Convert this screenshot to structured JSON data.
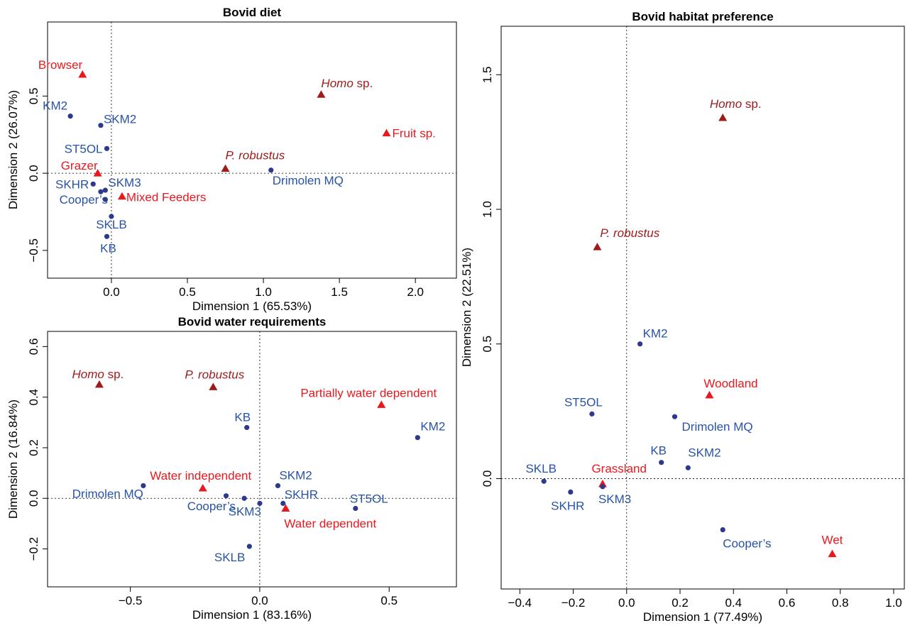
{
  "colors": {
    "site": "#2653a6",
    "site_marker": "#2d3a8c",
    "category": "#e8191e",
    "hominin": "#9e1b1b"
  },
  "chart_data": [
    {
      "type": "scatter",
      "title": "Bovid diet",
      "xlabel": "Dimension 1 (65.53%)",
      "ylabel": "Dimension 2 (26.07%)",
      "xlim": [
        -0.42,
        2.27
      ],
      "ylim": [
        -0.68,
        0.98
      ],
      "xticks": [
        0.0,
        0.5,
        1.0,
        1.5,
        2.0
      ],
      "xtick_labels": [
        "0.0",
        "0.5",
        "1.0",
        "1.5",
        "2.0"
      ],
      "yticks": [
        -0.5,
        0.0,
        0.5
      ],
      "ytick_labels": [
        "−0.5",
        "0.0",
        "0.5"
      ],
      "grid": false,
      "points": [
        {
          "label": "KM2",
          "x": -0.27,
          "y": 0.37,
          "group": "site",
          "anchor": "end",
          "dx": -4,
          "dy": -9
        },
        {
          "label": "SKM2",
          "x": -0.07,
          "y": 0.31,
          "group": "site",
          "anchor": "start",
          "dx": 4,
          "dy": -3
        },
        {
          "label": "ST5OL",
          "x": -0.03,
          "y": 0.16,
          "group": "site",
          "anchor": "end",
          "dx": -6,
          "dy": 6
        },
        {
          "label": "Grazer",
          "x": -0.09,
          "y": 0.0,
          "group": "category",
          "anchor": "end",
          "dx": 0,
          "dy": -5
        },
        {
          "label": "SKHR",
          "x": -0.12,
          "y": -0.07,
          "group": "site",
          "anchor": "end",
          "dx": -6,
          "dy": 6
        },
        {
          "label": "SKM3",
          "x": -0.04,
          "y": -0.11,
          "group": "site",
          "anchor": "start",
          "dx": 4,
          "dy": -5
        },
        {
          "label": "Cooper's",
          "x": -0.07,
          "y": -0.12,
          "group": "site",
          "anchor": "end",
          "dx": 10,
          "dy": 17
        },
        {
          "label": "",
          "x": -0.04,
          "y": -0.17,
          "group": "site",
          "anchor": "start",
          "dx": 0,
          "dy": 0
        },
        {
          "label": "Mixed Feeders",
          "x": 0.07,
          "y": -0.15,
          "group": "category",
          "anchor": "start",
          "dx": 6,
          "dy": 7
        },
        {
          "label": "SKLB",
          "x": 0.0,
          "y": -0.28,
          "group": "site",
          "anchor": "middle",
          "dx": 0,
          "dy": 17
        },
        {
          "label": "KB",
          "x": -0.03,
          "y": -0.41,
          "group": "site",
          "anchor": "middle",
          "dx": 2,
          "dy": 22
        },
        {
          "label": "Browser",
          "x": -0.19,
          "y": 0.64,
          "group": "category",
          "anchor": "end",
          "dx": 0,
          "dy": -8
        },
        {
          "label": "Homo sp.",
          "italic": "Homo",
          "rest": " sp.",
          "x": 1.38,
          "y": 0.51,
          "group": "hominin",
          "anchor": "start",
          "dx": 0,
          "dy": -10
        },
        {
          "label": "Fruit sp.",
          "x": 1.81,
          "y": 0.26,
          "group": "category",
          "anchor": "start",
          "dx": 8,
          "dy": 6
        },
        {
          "label": "P. robustus",
          "italic": "P. robustus",
          "rest": "",
          "x": 0.75,
          "y": 0.03,
          "group": "hominin",
          "anchor": "start",
          "dx": 0,
          "dy": -13
        },
        {
          "label": "Drimolen MQ",
          "x": 1.05,
          "y": 0.02,
          "group": "site",
          "anchor": "start",
          "dx": 2,
          "dy": 20
        }
      ]
    },
    {
      "type": "scatter",
      "title": "Bovid water requirements",
      "xlabel": "Dimension 1 (83.16%)",
      "ylabel": "Dimension 2 (16.84%)",
      "xlim": [
        -0.82,
        0.76
      ],
      "ylim": [
        -0.35,
        0.66
      ],
      "xticks": [
        -0.5,
        0.0,
        0.5
      ],
      "xtick_labels": [
        "−0.5",
        "0.0",
        "0.5"
      ],
      "yticks": [
        -0.2,
        0.0,
        0.2,
        0.4,
        0.6
      ],
      "ytick_labels": [
        "−0.2",
        "0.0",
        "0.2",
        "0.4",
        "0.6"
      ],
      "grid": false,
      "points": [
        {
          "label": "Homo sp.",
          "italic": "Homo",
          "rest": " sp.",
          "x": -0.62,
          "y": 0.45,
          "group": "hominin",
          "anchor": "middle",
          "dx": -2,
          "dy": -9
        },
        {
          "label": "P. robustus",
          "italic": "P. robustus",
          "rest": "",
          "x": -0.18,
          "y": 0.44,
          "group": "hominin",
          "anchor": "middle",
          "dx": 2,
          "dy": -12
        },
        {
          "label": "Partially water dependent",
          "x": 0.47,
          "y": 0.37,
          "group": "category",
          "anchor": "middle",
          "dx": -18,
          "dy": -11
        },
        {
          "label": "KB",
          "x": -0.05,
          "y": 0.28,
          "group": "site",
          "anchor": "middle",
          "dx": -6,
          "dy": -9
        },
        {
          "label": "KM2",
          "x": 0.61,
          "y": 0.24,
          "group": "site",
          "anchor": "start",
          "dx": 4,
          "dy": -10
        },
        {
          "label": "Water independent",
          "x": -0.22,
          "y": 0.04,
          "group": "category",
          "anchor": "middle",
          "dx": -3,
          "dy": -12
        },
        {
          "label": "Drimolen MQ",
          "x": -0.45,
          "y": 0.05,
          "group": "site",
          "anchor": "end",
          "dx": 0,
          "dy": 17
        },
        {
          "label": "",
          "x": -0.13,
          "y": 0.01,
          "group": "site",
          "anchor": "start",
          "dx": 0,
          "dy": 0
        },
        {
          "label": "Cooper's",
          "x": -0.06,
          "y": 0.0,
          "group": "site",
          "anchor": "end",
          "dx": -12,
          "dy": 17
        },
        {
          "label": "SKM2",
          "x": 0.07,
          "y": 0.05,
          "group": "site",
          "anchor": "start",
          "dx": 2,
          "dy": -9
        },
        {
          "label": "SKHR",
          "x": 0.09,
          "y": -0.02,
          "group": "site",
          "anchor": "start",
          "dx": 2,
          "dy": -7
        },
        {
          "label": "SKM3",
          "x": 0.0,
          "y": -0.02,
          "group": "site",
          "anchor": "end",
          "dx": 2,
          "dy": 17
        },
        {
          "label": "Water dependent",
          "x": 0.1,
          "y": -0.04,
          "group": "category",
          "anchor": "start",
          "dx": -2,
          "dy": 27
        },
        {
          "label": "ST5OL",
          "x": 0.37,
          "y": -0.04,
          "group": "site",
          "anchor": "start",
          "dx": -8,
          "dy": -8
        },
        {
          "label": "SKLB",
          "x": -0.04,
          "y": -0.19,
          "group": "site",
          "anchor": "end",
          "dx": -6,
          "dy": 21
        }
      ]
    },
    {
      "type": "scatter",
      "title": "Bovid habitat preference",
      "xlabel": "Dimension 1 (77.49%)",
      "ylabel": "Dimension 2 (22.51%)",
      "xlim": [
        -0.47,
        1.04
      ],
      "ylim": [
        -0.41,
        1.68
      ],
      "xticks": [
        -0.4,
        -0.2,
        0.0,
        0.2,
        0.4,
        0.6,
        0.8,
        1.0
      ],
      "xtick_labels": [
        "−0.4",
        "−0.2",
        "0.0",
        "0.2",
        "0.4",
        "0.6",
        "0.8",
        "1.0"
      ],
      "yticks": [
        0.0,
        0.5,
        1.0,
        1.5
      ],
      "ytick_labels": [
        "0.0",
        "0.5",
        "1.0",
        "1.5"
      ],
      "grid": false,
      "points": [
        {
          "label": "Homo sp.",
          "italic": "Homo",
          "rest": " sp.",
          "x": 0.36,
          "y": 1.34,
          "group": "hominin",
          "anchor": "middle",
          "dx": 18,
          "dy": -14
        },
        {
          "label": "P. robustus",
          "italic": "P. robustus",
          "rest": "",
          "x": -0.11,
          "y": 0.86,
          "group": "hominin",
          "anchor": "start",
          "dx": 4,
          "dy": -14
        },
        {
          "label": "KM2",
          "x": 0.05,
          "y": 0.5,
          "group": "site",
          "anchor": "start",
          "dx": 4,
          "dy": -9
        },
        {
          "label": "Woodland",
          "x": 0.31,
          "y": 0.31,
          "group": "category",
          "anchor": "start",
          "dx": -8,
          "dy": -11
        },
        {
          "label": "ST5OL",
          "x": -0.13,
          "y": 0.24,
          "group": "site",
          "anchor": "middle",
          "dx": -12,
          "dy": -11
        },
        {
          "label": "Drimolen MQ",
          "x": 0.18,
          "y": 0.23,
          "group": "site",
          "anchor": "start",
          "dx": 10,
          "dy": 20
        },
        {
          "label": "KB",
          "x": 0.13,
          "y": 0.06,
          "group": "site",
          "anchor": "middle",
          "dx": -4,
          "dy": -11
        },
        {
          "label": "SKM2",
          "x": 0.23,
          "y": 0.04,
          "group": "site",
          "anchor": "start",
          "dx": 0,
          "dy": -16
        },
        {
          "label": "Grassland",
          "x": -0.09,
          "y": -0.02,
          "group": "category",
          "anchor": "end",
          "dx": 62,
          "dy": -16
        },
        {
          "label": "SKLB",
          "x": -0.31,
          "y": -0.01,
          "group": "site",
          "anchor": "middle",
          "dx": -4,
          "dy": -12
        },
        {
          "label": "SKHR",
          "x": -0.21,
          "y": -0.05,
          "group": "site",
          "anchor": "middle",
          "dx": -4,
          "dy": 25
        },
        {
          "label": "SKM3",
          "x": -0.09,
          "y": -0.03,
          "group": "site",
          "anchor": "start",
          "dx": -6,
          "dy": 23
        },
        {
          "label": "Cooper's",
          "x": 0.36,
          "y": -0.19,
          "group": "site",
          "anchor": "start",
          "dx": 0,
          "dy": 25
        },
        {
          "label": "Wet",
          "x": 0.77,
          "y": -0.28,
          "group": "category",
          "anchor": "middle",
          "dx": 0,
          "dy": -14
        }
      ]
    }
  ]
}
